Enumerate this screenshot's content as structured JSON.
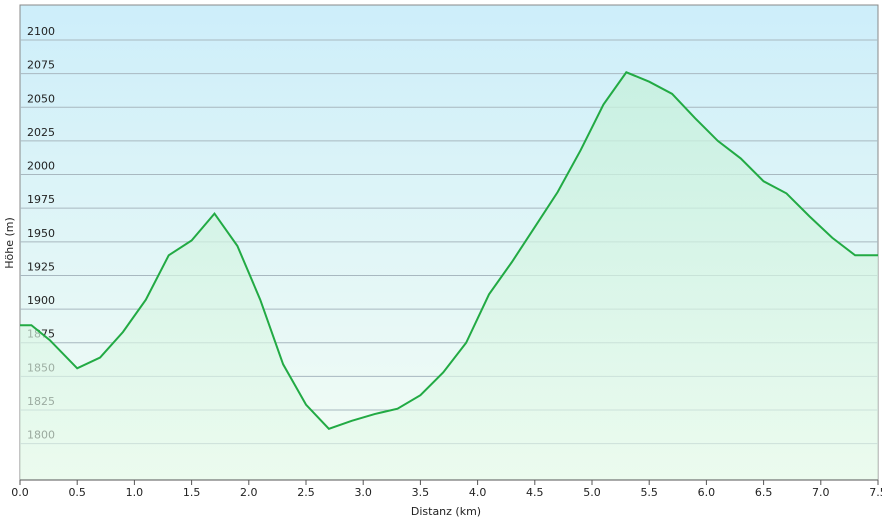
{
  "chart_data": {
    "type": "area",
    "xlabel": "Distanz  (km)",
    "ylabel": "Höhe (m)",
    "x": [
      0,
      0.1,
      0.26,
      0.5,
      0.7,
      0.9,
      1.1,
      1.3,
      1.5,
      1.7,
      1.9,
      2.1,
      2.3,
      2.5,
      2.7,
      2.9,
      3.1,
      3.3,
      3.5,
      3.7,
      3.9,
      4.1,
      4.3,
      4.5,
      4.7,
      4.9,
      5.1,
      5.3,
      5.5,
      5.7,
      5.9,
      6.1,
      6.3,
      6.5,
      6.7,
      6.9,
      7.1,
      7.3,
      7.5
    ],
    "series": [
      {
        "color": "#22aa44",
        "values": [
          1888,
          1888,
          1877,
          1856,
          1864,
          1883,
          1907,
          1940,
          1951,
          1971,
          1947,
          1907,
          1859,
          1829,
          1811,
          1817,
          1822,
          1826,
          1836,
          1853,
          1875,
          1911,
          1935,
          1961,
          1987,
          2018,
          2052,
          2076,
          2069,
          2060,
          2042,
          2025,
          2012,
          1995,
          1986,
          1969,
          1953,
          1940,
          1940
        ]
      }
    ],
    "xlim": [
      0,
      7.5
    ],
    "xticks": [
      {
        "value": 0,
        "label": "0.0"
      },
      0.5,
      {
        "value": 1,
        "label": "1.0"
      },
      1.5,
      {
        "value": 2,
        "label": "2.0"
      },
      2.5,
      {
        "value": 3,
        "label": "3.0"
      },
      3.5,
      {
        "value": 4,
        "label": "4.0"
      },
      4.5,
      {
        "value": 5,
        "label": "5.0"
      },
      5.5,
      {
        "value": 6,
        "label": "6.0"
      },
      6.5,
      {
        "value": 7,
        "label": "7.0"
      },
      7.5
    ],
    "ylim": [
      1773,
      2126
    ],
    "yticks": [
      1800,
      1825,
      1850,
      1875,
      1900,
      1925,
      1950,
      1975,
      2000,
      2025,
      2050,
      2075,
      2100
    ],
    "grid": true
  }
}
